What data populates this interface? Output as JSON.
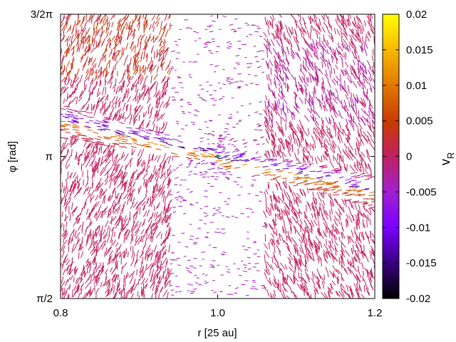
{
  "chart_data": {
    "type": "vector-field",
    "xlabel": "r [25 au]",
    "ylabel": "φ [rad]",
    "xlim": [
      0.8,
      1.2
    ],
    "ylim": [
      1.5708,
      4.7124
    ],
    "x_ticks": [
      {
        "value": 0.8,
        "label": "0.8"
      },
      {
        "value": 1.0,
        "label": "1.0"
      },
      {
        "value": 1.2,
        "label": "1.2"
      }
    ],
    "y_ticks": [
      {
        "value": 1.5708,
        "label": "π/2"
      },
      {
        "value": 3.1416,
        "label": "π"
      },
      {
        "value": 4.7124,
        "label": "3/2π"
      }
    ],
    "colorbar": {
      "label_main": "v",
      "label_sub": "R",
      "range": [
        -0.02,
        0.02
      ],
      "ticks": [
        "0.02",
        "0.015",
        "0.01",
        "0.005",
        "0",
        "-0.005",
        "-0.01",
        "-0.015",
        "-0.02"
      ],
      "tick_values": [
        0.02,
        0.015,
        0.01,
        0.005,
        0,
        -0.005,
        -0.01,
        -0.015,
        -0.02
      ],
      "colormap": [
        "#000000",
        "#3a0080",
        "#7b00ff",
        "#a020d0",
        "#c02060",
        "#c83c00",
        "#e07800",
        "#f8b800",
        "#ffff00"
      ]
    },
    "features": {
      "planet_position": {
        "r": 1.0,
        "phi": 3.1416
      },
      "gap_inner_edge_r": 0.94,
      "gap_outer_edge_r": 1.06
    }
  }
}
